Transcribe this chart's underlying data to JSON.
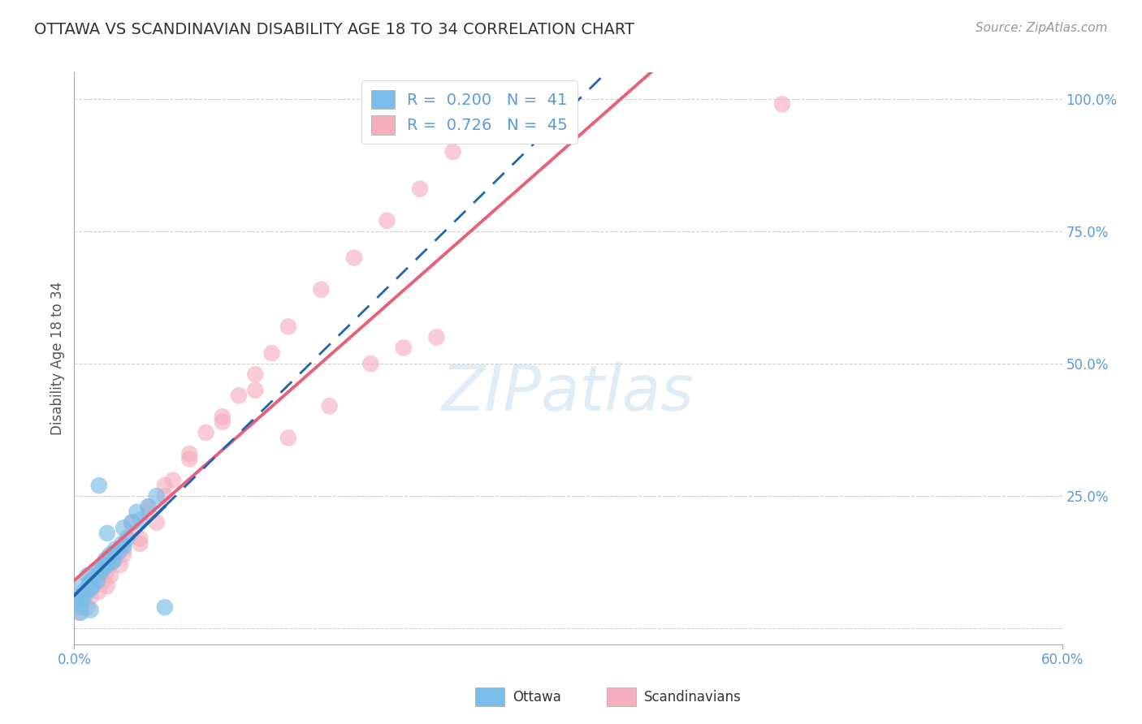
{
  "title": "OTTAWA VS SCANDINAVIAN DISABILITY AGE 18 TO 34 CORRELATION CHART",
  "source": "Source: ZipAtlas.com",
  "xmin": 0,
  "xmax": 60,
  "ymin": -3,
  "ymax": 105,
  "ottawa_R": 0.2,
  "ottawa_N": 41,
  "scand_R": 0.726,
  "scand_N": 45,
  "ottawa_color": "#7abde8",
  "scand_color": "#f5afc0",
  "ottawa_line_color": "#2166ac",
  "scand_line_color": "#e8607a",
  "ottawa_scatter_x": [
    0.2,
    0.3,
    0.4,
    0.5,
    0.5,
    0.6,
    0.7,
    0.8,
    0.9,
    1.0,
    1.0,
    1.1,
    1.2,
    1.3,
    1.4,
    1.5,
    1.6,
    1.7,
    1.8,
    1.9,
    2.0,
    2.1,
    2.2,
    2.3,
    2.4,
    2.5,
    2.7,
    2.9,
    3.0,
    3.2,
    3.5,
    3.8,
    4.0,
    4.5,
    5.0,
    5.5,
    1.5,
    2.0,
    3.0,
    0.4,
    1.0
  ],
  "ottawa_scatter_y": [
    5.0,
    6.0,
    4.0,
    5.5,
    8.0,
    7.0,
    6.5,
    10.0,
    8.5,
    9.0,
    7.5,
    8.0,
    9.5,
    10.0,
    9.0,
    11.0,
    10.5,
    12.0,
    11.5,
    13.0,
    12.0,
    13.5,
    14.0,
    12.5,
    13.0,
    15.0,
    14.5,
    16.0,
    15.5,
    17.0,
    20.0,
    22.0,
    20.5,
    23.0,
    25.0,
    4.0,
    27.0,
    18.0,
    19.0,
    3.0,
    3.5
  ],
  "scand_scatter_x": [
    0.3,
    0.5,
    0.8,
    1.0,
    1.2,
    1.5,
    1.8,
    2.0,
    2.2,
    2.5,
    2.8,
    3.0,
    3.5,
    4.0,
    4.5,
    5.0,
    5.5,
    6.0,
    7.0,
    8.0,
    9.0,
    10.0,
    11.0,
    12.0,
    13.0,
    15.0,
    17.0,
    19.0,
    21.0,
    23.0,
    3.5,
    4.5,
    5.5,
    7.0,
    9.0,
    11.0,
    13.0,
    15.5,
    18.0,
    22.0,
    2.0,
    3.0,
    4.0,
    43.0,
    20.0
  ],
  "scand_scatter_y": [
    3.0,
    5.0,
    4.0,
    6.0,
    8.0,
    7.0,
    9.0,
    11.0,
    10.0,
    13.0,
    12.0,
    15.0,
    18.0,
    17.0,
    22.0,
    20.0,
    25.0,
    28.0,
    33.0,
    37.0,
    40.0,
    44.0,
    48.0,
    52.0,
    57.0,
    64.0,
    70.0,
    77.0,
    83.0,
    90.0,
    20.0,
    23.0,
    27.0,
    32.0,
    39.0,
    45.0,
    36.0,
    42.0,
    50.0,
    55.0,
    8.0,
    14.0,
    16.0,
    99.0,
    53.0
  ],
  "watermark_text": "ZIPatlas",
  "background_color": "#ffffff",
  "grid_color": "#d0d0d0",
  "yticks": [
    0,
    25,
    50,
    75,
    100
  ],
  "ylabel_labels": [
    "",
    "25.0%",
    "50.0%",
    "75.0%",
    "100.0%"
  ]
}
